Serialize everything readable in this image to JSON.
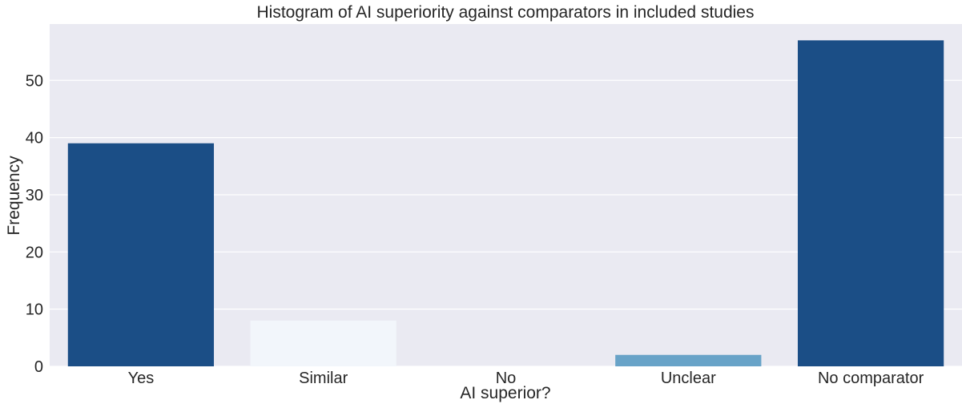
{
  "chart_data": {
    "type": "bar",
    "title": "Histogram of AI superiority against comparators in included studies",
    "xlabel": "AI superior?",
    "ylabel": "Frequency",
    "categories": [
      "Yes",
      "Similar",
      "No",
      "Unclear",
      "No comparator"
    ],
    "values": [
      39,
      8,
      0,
      2,
      57
    ],
    "colors": [
      "#1b4e86",
      "#f2f6fb",
      "#d4e4f1",
      "#68a3c8",
      "#1b4e86"
    ],
    "ylim": [
      0,
      59.85
    ],
    "yticks": [
      0,
      10,
      20,
      30,
      40,
      50
    ],
    "grid": true,
    "background": "#eaeaf2"
  }
}
